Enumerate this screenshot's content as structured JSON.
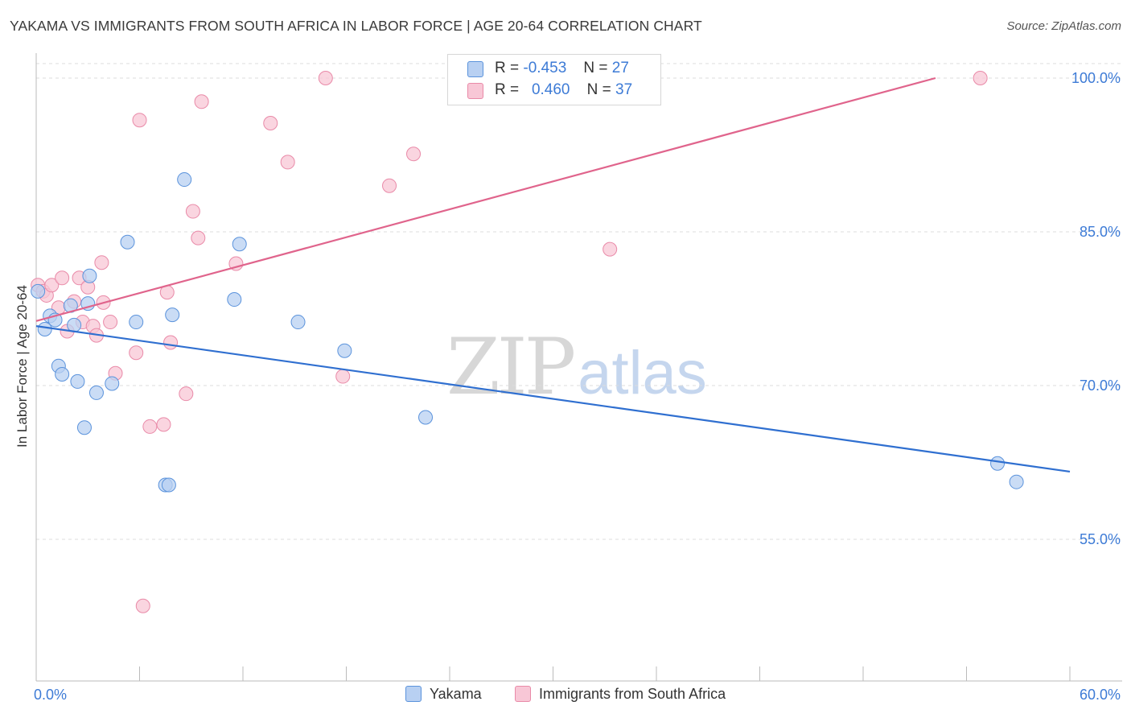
{
  "title": "YAKAMA VS IMMIGRANTS FROM SOUTH AFRICA IN LABOR FORCE | AGE 20-64 CORRELATION CHART",
  "source": "Source: ZipAtlas.com",
  "watermark": {
    "zip": "ZIP",
    "atlas": "atlas"
  },
  "legend": {
    "rows": [
      {
        "r_label": "R =",
        "r_value": "-0.453",
        "n_label": "N =",
        "n_value": "27"
      },
      {
        "r_label": "R =",
        "r_value": "0.460",
        "n_label": "N =",
        "n_value": "37"
      }
    ]
  },
  "colors": {
    "yakama_fill": "#b8d0f2",
    "yakama_stroke": "#5b93dc",
    "yakama_line": "#2f6fd0",
    "sa_fill": "#f8c7d6",
    "sa_stroke": "#e98aa8",
    "sa_line": "#e0648c",
    "tick_text": "#3d7bd6",
    "grid": "#dddddd"
  },
  "chart_data": {
    "type": "scatter",
    "title": "YAKAMA VS IMMIGRANTS FROM SOUTH AFRICA IN LABOR FORCE | AGE 20-64 CORRELATION CHART",
    "xlabel": "",
    "ylabel": "In Labor Force | Age 20-64",
    "xlim": [
      0,
      60
    ],
    "ylim": [
      42,
      101.5
    ],
    "x_tick_labels": [
      "0.0%",
      "60.0%"
    ],
    "y_ticks": [
      55,
      70,
      85,
      100
    ],
    "y_tick_labels": [
      "55.0%",
      "70.0%",
      "85.0%",
      "100.0%"
    ],
    "grid": "horizontal dashed",
    "legend_position": "top-center and bottom",
    "series": [
      {
        "name": "Yakama",
        "r": -0.453,
        "n": 27,
        "trend": {
          "x": [
            0,
            60
          ],
          "y": [
            75.8,
            61.6
          ]
        },
        "points": [
          [
            0.1,
            79.2
          ],
          [
            0.5,
            75.5
          ],
          [
            0.8,
            76.8
          ],
          [
            1.1,
            76.4
          ],
          [
            1.3,
            71.9
          ],
          [
            1.5,
            71.1
          ],
          [
            2.0,
            77.8
          ],
          [
            2.2,
            75.9
          ],
          [
            2.4,
            70.4
          ],
          [
            2.8,
            65.9
          ],
          [
            3.0,
            78.0
          ],
          [
            3.1,
            80.7
          ],
          [
            3.5,
            69.3
          ],
          [
            4.4,
            70.2
          ],
          [
            5.3,
            84.0
          ],
          [
            5.8,
            76.2
          ],
          [
            7.5,
            60.3
          ],
          [
            7.7,
            60.3
          ],
          [
            7.9,
            76.9
          ],
          [
            8.6,
            90.1
          ],
          [
            11.5,
            78.4
          ],
          [
            11.8,
            83.8
          ],
          [
            15.2,
            76.2
          ],
          [
            17.9,
            73.4
          ],
          [
            22.6,
            66.9
          ],
          [
            55.8,
            62.4
          ],
          [
            56.9,
            60.6
          ]
        ]
      },
      {
        "name": "Immigrants from South Africa",
        "r": 0.46,
        "n": 37,
        "trend": {
          "x": [
            0,
            52.2
          ],
          "y": [
            76.3,
            100
          ]
        },
        "points": [
          [
            0.1,
            79.8
          ],
          [
            0.4,
            79.2
          ],
          [
            0.6,
            78.8
          ],
          [
            0.9,
            79.8
          ],
          [
            1.3,
            77.6
          ],
          [
            1.5,
            80.5
          ],
          [
            1.8,
            75.3
          ],
          [
            2.2,
            78.2
          ],
          [
            2.5,
            80.5
          ],
          [
            2.7,
            76.2
          ],
          [
            3.0,
            79.6
          ],
          [
            3.3,
            75.8
          ],
          [
            3.5,
            74.9
          ],
          [
            3.8,
            82.0
          ],
          [
            3.9,
            78.1
          ],
          [
            4.3,
            76.2
          ],
          [
            4.6,
            71.2
          ],
          [
            5.8,
            73.2
          ],
          [
            6.0,
            95.9
          ],
          [
            6.2,
            48.5
          ],
          [
            6.6,
            66.0
          ],
          [
            7.4,
            66.2
          ],
          [
            7.6,
            79.1
          ],
          [
            7.8,
            74.2
          ],
          [
            8.7,
            69.2
          ],
          [
            9.1,
            87.0
          ],
          [
            9.4,
            84.4
          ],
          [
            9.6,
            97.7
          ],
          [
            11.6,
            81.9
          ],
          [
            13.6,
            95.6
          ],
          [
            14.6,
            91.8
          ],
          [
            16.8,
            100.0
          ],
          [
            17.8,
            70.9
          ],
          [
            20.5,
            89.5
          ],
          [
            21.9,
            92.6
          ],
          [
            33.3,
            83.3
          ],
          [
            54.8,
            100.0
          ]
        ]
      }
    ]
  }
}
